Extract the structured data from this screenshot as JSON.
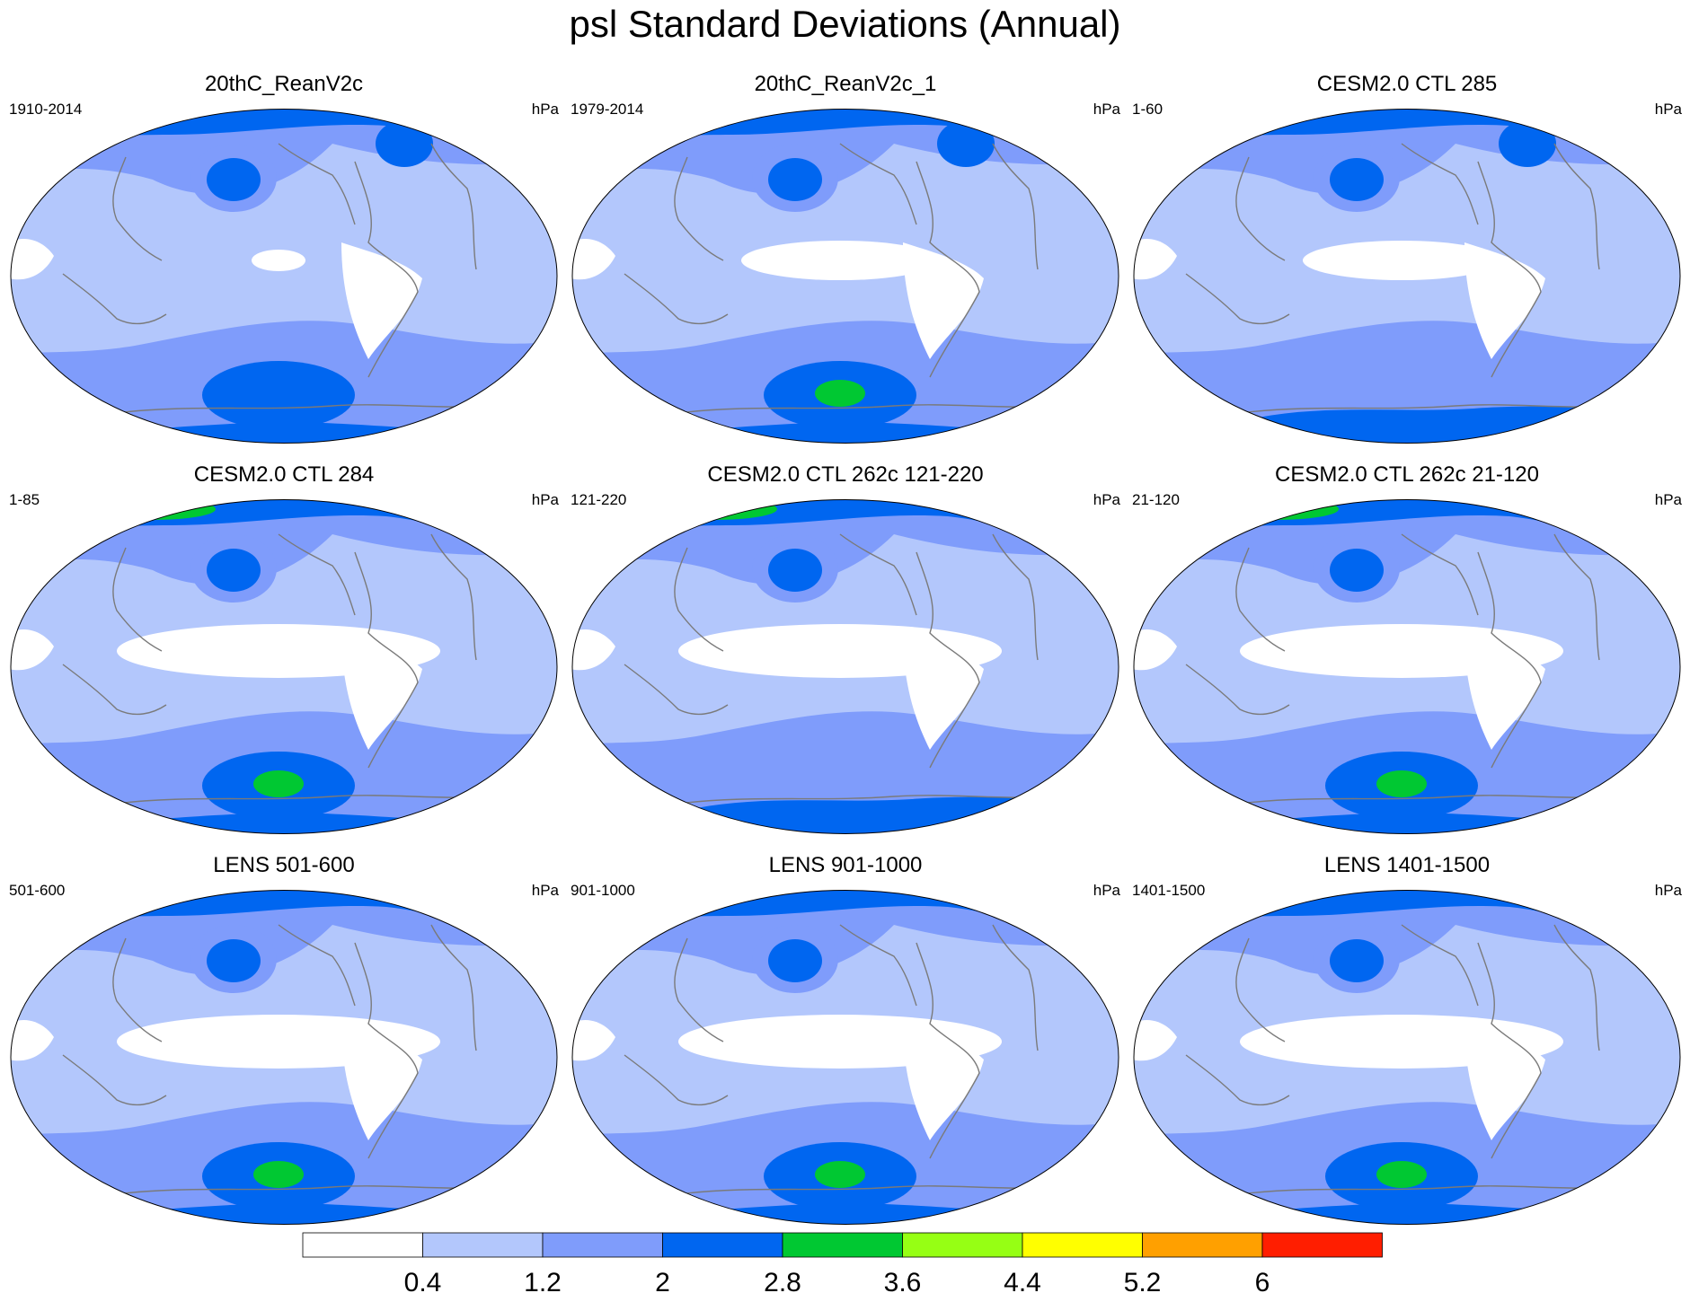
{
  "title": "psl Standard Deviations (Annual)",
  "chart_data": {
    "type": "heatmap",
    "title": "psl Standard Deviations (Annual)",
    "variable": "psl",
    "units": "hPa",
    "projection": "Robinson-like global map, Pacific-centered",
    "colorbar": {
      "levels": [
        "0.4",
        "1.2",
        "2",
        "2.8",
        "3.6",
        "4.4",
        "5.2",
        "6"
      ],
      "colors": [
        "#ffffff",
        "#b3c7fc",
        "#7f9cfb",
        "#0066f0",
        "#00c832",
        "#96ff14",
        "#ffff00",
        "#ffa000",
        "#ff1e00"
      ]
    },
    "panels": [
      {
        "title": "20thC_ReanV2c",
        "left_label": "1910-2014",
        "right_label": "hPa",
        "regions": {
          "nh_polar": 3,
          "north_pacific_center": 3,
          "north_atlantic_center": 3,
          "southern_ocean": 2,
          "south_pacific_center": 3,
          "tropical_white": "small"
        }
      },
      {
        "title": "20thC_ReanV2c_1",
        "left_label": "1979-2014",
        "right_label": "hPa",
        "regions": {
          "nh_polar": 3,
          "north_pacific_center": 3,
          "north_atlantic_center": 3,
          "southern_ocean": 2,
          "south_pacific_center": 4,
          "tropical_white": "medium"
        }
      },
      {
        "title": "CESM2.0 CTL 285",
        "left_label": "1-60",
        "right_label": "hPa",
        "regions": {
          "nh_polar": 3,
          "north_pacific_center": 3,
          "north_atlantic_center": 3,
          "southern_ocean": 2,
          "antarctic_coast": 3,
          "tropical_white": "medium"
        }
      },
      {
        "title": "CESM2.0 CTL 284",
        "left_label": "1-85",
        "right_label": "hPa",
        "regions": {
          "nh_polar": 3,
          "arctic_green": 4,
          "north_pacific_center": 3,
          "southern_ocean": 2,
          "south_pacific_center": 4,
          "tropical_white": "large"
        }
      },
      {
        "title": "CESM2.0 CTL 262c 121-220",
        "left_label": "121-220",
        "right_label": "hPa",
        "regions": {
          "nh_polar": 3,
          "arctic_green": 4,
          "north_pacific_center": 3,
          "southern_ocean": 2,
          "antarctic_coast": 3,
          "tropical_white": "large"
        }
      },
      {
        "title": "CESM2.0 CTL 262c 21-120",
        "left_label": "21-120",
        "right_label": "hPa",
        "regions": {
          "nh_polar": 3,
          "arctic_green": 4,
          "north_pacific_center": 3,
          "southern_ocean": 2,
          "south_pacific_center": 4,
          "tropical_white": "large"
        }
      },
      {
        "title": "LENS 501-600",
        "left_label": "501-600",
        "right_label": "hPa",
        "regions": {
          "nh_polar": 3,
          "north_pacific_center": 3,
          "southern_ocean": 2,
          "south_pacific_center": 4,
          "tropical_white": "large"
        }
      },
      {
        "title": "LENS 901-1000",
        "left_label": "901-1000",
        "right_label": "hPa",
        "regions": {
          "nh_polar": 3,
          "north_pacific_center": 3,
          "southern_ocean": 2,
          "south_pacific_center": 4,
          "tropical_white": "large"
        }
      },
      {
        "title": "LENS 1401-1500",
        "left_label": "1401-1500",
        "right_label": "hPa",
        "regions": {
          "nh_polar": 3,
          "north_pacific_center": 3,
          "southern_ocean": 2,
          "south_pacific_center": 4,
          "tropical_white": "large"
        }
      }
    ]
  }
}
